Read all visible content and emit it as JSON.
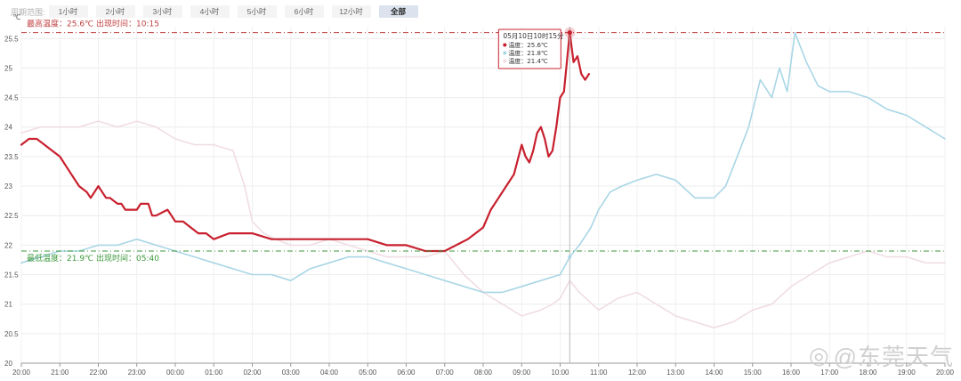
{
  "range_selector": {
    "label": "周期范围:",
    "options": [
      "1小时",
      "2小时",
      "3小时",
      "4小时",
      "5小时",
      "6小时",
      "12小时",
      "全部"
    ],
    "selected": "全部"
  },
  "watermark": {
    "text": "@东莞天气",
    "logo_icon": "weibo-icon"
  },
  "chart_data": {
    "type": "line",
    "ylabel": "℃",
    "ylim": [
      20,
      25.7
    ],
    "yticks": [
      "20",
      "20.5",
      "21",
      "21.5",
      "22",
      "22.5",
      "23",
      "23.5",
      "24",
      "24.5",
      "25",
      "25.5"
    ],
    "xticks": [
      "20:00",
      "21:00",
      "22:00",
      "23:00",
      "00:00",
      "01:00",
      "02:00",
      "03:00",
      "04:00",
      "05:00",
      "06:00",
      "07:00",
      "08:00",
      "09:00",
      "10:00",
      "11:00",
      "12:00",
      "13:00",
      "14:00",
      "15:00",
      "16:00",
      "17:00",
      "18:00",
      "19:00",
      "20:00"
    ],
    "grid": true,
    "colors": {
      "current": "#c8202e",
      "previous_day": "#f0dde4",
      "dew": "#a9d6e6",
      "max_line": "#c04040",
      "min_line": "#3d9a3d"
    },
    "max_annotation": {
      "text": "最高温度：25.6℃ 出现时间：10:15",
      "value": 25.6
    },
    "min_annotation": {
      "text": "最低温度：21.9℃ 出现时间：05:40",
      "value": 21.9
    },
    "tooltip": {
      "title": "05月10日10时15分",
      "lines": [
        "温度：25.6℃",
        "温度：21.8℃",
        "温度：21.4℃"
      ],
      "time": 14.25
    },
    "series": [
      {
        "key": "current",
        "x": [
          0,
          0.2,
          0.4,
          0.6,
          0.8,
          1.0,
          1.2,
          1.3,
          1.5,
          1.7,
          1.8,
          2.0,
          2.1,
          2.2,
          2.3,
          2.5,
          2.6,
          2.7,
          2.9,
          3.0,
          3.1,
          3.3,
          3.4,
          3.5,
          3.8,
          3.9,
          4.0,
          4.2,
          4.4,
          4.6,
          4.8,
          5.0,
          5.4,
          5.8,
          6.0,
          6.5,
          7.0,
          7.5,
          8.0,
          8.5,
          9.0,
          9.5,
          10.0,
          10.5,
          11.0,
          11.3,
          11.6,
          11.8,
          12.0,
          12.2,
          12.4,
          12.6,
          12.8,
          13.0,
          13.1,
          13.2,
          13.3,
          13.4,
          13.5,
          13.6,
          13.7,
          13.8,
          13.9,
          14.0,
          14.1,
          14.25,
          14.35,
          14.45,
          14.55,
          14.65,
          14.75
        ],
        "y": [
          23.7,
          23.8,
          23.8,
          23.7,
          23.6,
          23.5,
          23.3,
          23.2,
          23.0,
          22.9,
          22.8,
          23.0,
          22.9,
          22.8,
          22.8,
          22.7,
          22.7,
          22.6,
          22.6,
          22.6,
          22.7,
          22.7,
          22.5,
          22.5,
          22.6,
          22.5,
          22.4,
          22.4,
          22.3,
          22.2,
          22.2,
          22.1,
          22.2,
          22.2,
          22.2,
          22.1,
          22.1,
          22.1,
          22.1,
          22.1,
          22.1,
          22.0,
          22.0,
          21.9,
          21.9,
          22.0,
          22.1,
          22.2,
          22.3,
          22.6,
          22.8,
          23.0,
          23.2,
          23.7,
          23.5,
          23.4,
          23.6,
          23.9,
          24.0,
          23.8,
          23.5,
          23.6,
          24.0,
          24.5,
          24.6,
          25.6,
          25.1,
          25.2,
          24.9,
          24.8,
          24.9
        ]
      },
      {
        "key": "previous_day",
        "x": [
          0,
          0.5,
          1.0,
          1.5,
          2.0,
          2.5,
          3.0,
          3.5,
          4.0,
          4.5,
          5.0,
          5.5,
          5.8,
          6.0,
          6.3,
          6.6,
          7.0,
          7.5,
          8.0,
          8.5,
          9.0,
          9.5,
          10.0,
          10.5,
          11.0,
          11.5,
          12.0,
          12.5,
          13.0,
          13.5,
          13.8,
          14.0,
          14.25,
          14.5,
          15.0,
          15.5,
          16.0,
          16.5,
          17.0,
          17.5,
          18.0,
          18.5,
          19.0,
          19.5,
          20.0,
          20.5,
          21.0,
          21.5,
          22.0,
          22.5,
          23.0,
          23.5,
          24.0
        ],
        "y": [
          23.9,
          24.0,
          24.0,
          24.0,
          24.1,
          24.0,
          24.1,
          24.0,
          23.8,
          23.7,
          23.7,
          23.6,
          23.0,
          22.4,
          22.2,
          22.1,
          22.0,
          22.0,
          22.1,
          22.0,
          21.9,
          21.8,
          21.8,
          21.8,
          21.9,
          21.5,
          21.2,
          21.0,
          20.8,
          20.9,
          21.0,
          21.1,
          21.4,
          21.2,
          20.9,
          21.1,
          21.2,
          21.0,
          20.8,
          20.7,
          20.6,
          20.7,
          20.9,
          21.0,
          21.3,
          21.5,
          21.7,
          21.8,
          21.9,
          21.8,
          21.8,
          21.7,
          21.7
        ]
      },
      {
        "key": "dew",
        "x": [
          0,
          0.5,
          1.0,
          1.5,
          2.0,
          2.5,
          3.0,
          3.5,
          4.0,
          4.5,
          5.0,
          5.5,
          6.0,
          6.5,
          7.0,
          7.5,
          8.0,
          8.5,
          9.0,
          9.5,
          10.0,
          10.5,
          11.0,
          11.5,
          12.0,
          12.5,
          13.0,
          13.5,
          14.0,
          14.25,
          14.5,
          14.8,
          15.0,
          15.3,
          15.6,
          16.0,
          16.5,
          17.0,
          17.5,
          18.0,
          18.3,
          18.6,
          18.9,
          19.2,
          19.5,
          19.7,
          19.9,
          20.1,
          20.4,
          20.7,
          21.0,
          21.5,
          22.0,
          22.5,
          23.0,
          23.5,
          24.0
        ],
        "y": [
          21.7,
          21.8,
          21.9,
          21.9,
          22.0,
          22.0,
          22.1,
          22.0,
          21.9,
          21.8,
          21.7,
          21.6,
          21.5,
          21.5,
          21.4,
          21.6,
          21.7,
          21.8,
          21.8,
          21.7,
          21.6,
          21.5,
          21.4,
          21.3,
          21.2,
          21.2,
          21.3,
          21.4,
          21.5,
          21.8,
          22.0,
          22.3,
          22.6,
          22.9,
          23.0,
          23.1,
          23.2,
          23.1,
          22.8,
          22.8,
          23.0,
          23.5,
          24.0,
          24.8,
          24.5,
          25.0,
          24.6,
          25.6,
          25.1,
          24.7,
          24.6,
          24.6,
          24.5,
          24.3,
          24.2,
          24.0,
          23.8
        ]
      }
    ]
  }
}
